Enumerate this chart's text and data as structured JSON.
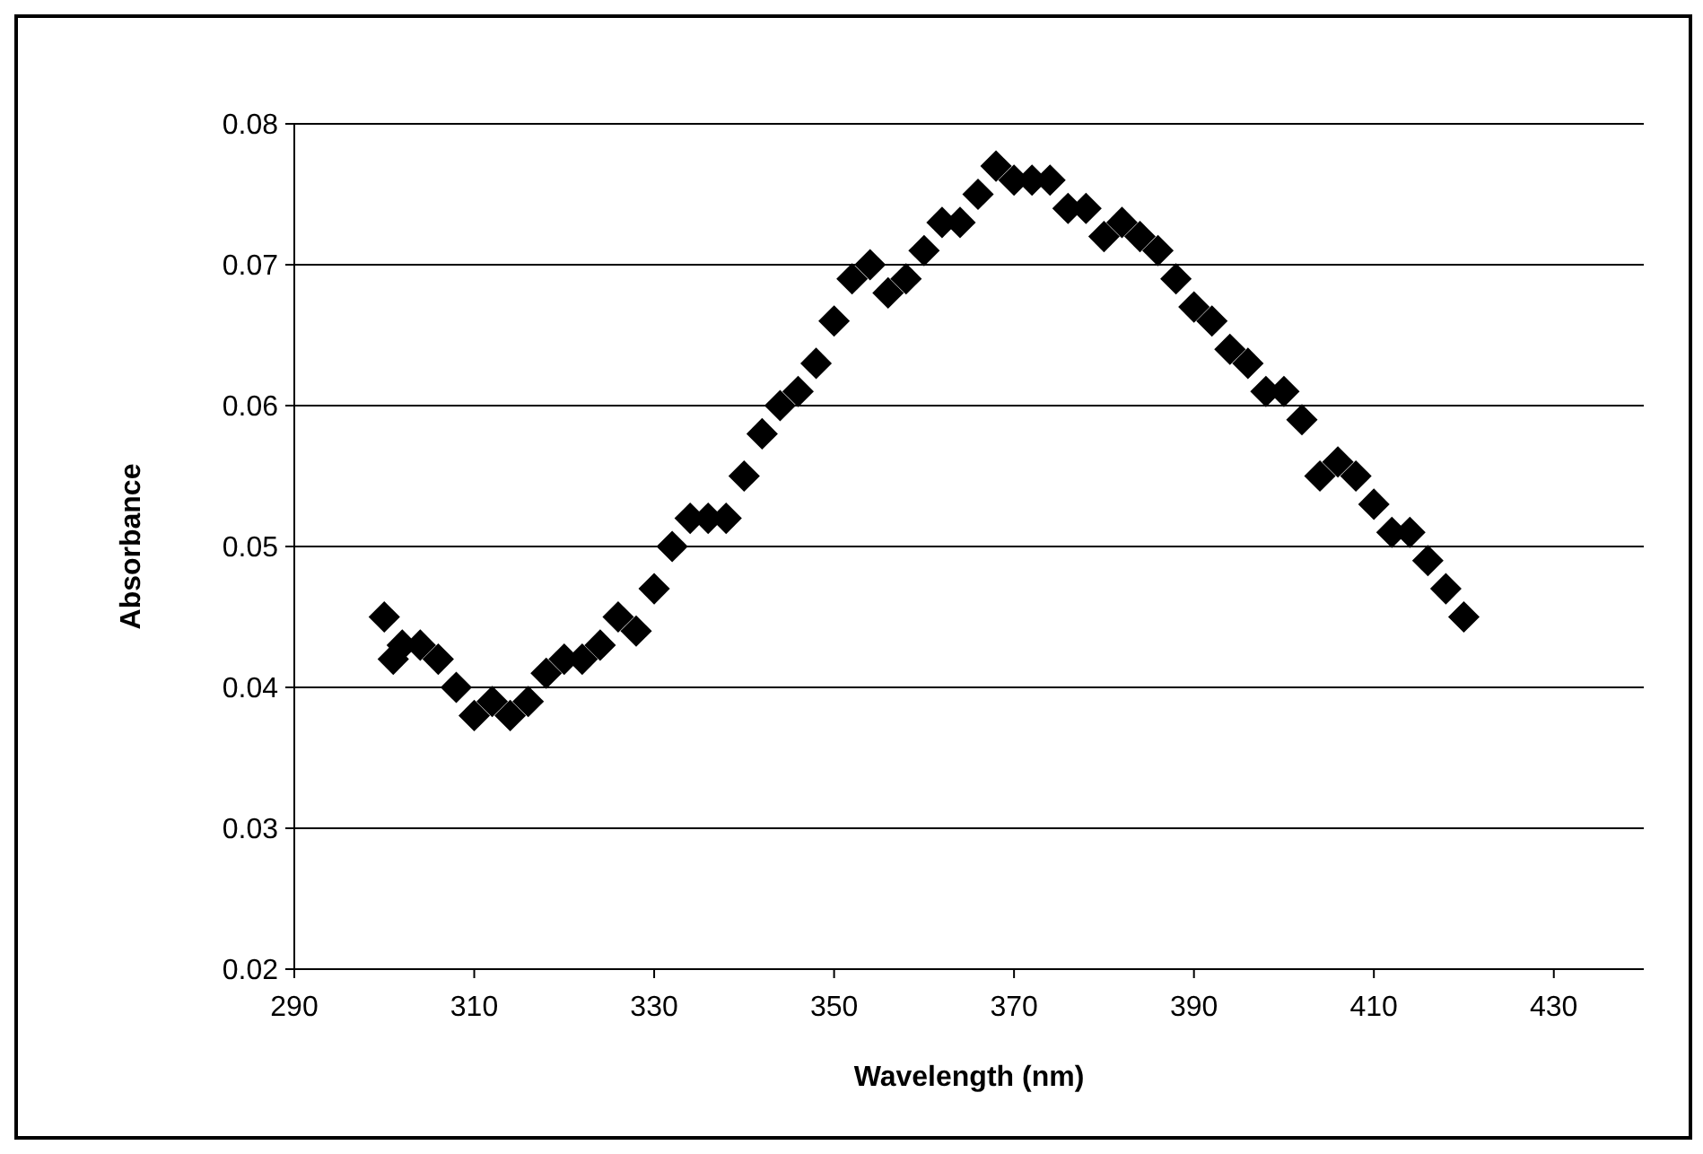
{
  "chart_data": {
    "type": "scatter",
    "xlabel": "Wavelength (nm)",
    "ylabel": "Absorbance",
    "x": [
      300,
      301,
      302,
      304,
      306,
      308,
      310,
      312,
      314,
      316,
      318,
      320,
      322,
      324,
      326,
      328,
      330,
      332,
      334,
      336,
      338,
      340,
      342,
      344,
      346,
      348,
      350,
      352,
      354,
      356,
      358,
      360,
      362,
      364,
      366,
      368,
      370,
      372,
      374,
      376,
      378,
      380,
      382,
      384,
      386,
      388,
      390,
      392,
      394,
      396,
      398,
      400,
      402,
      404,
      406,
      408,
      410,
      412,
      414,
      416,
      418,
      420
    ],
    "series": [
      {
        "color": "#000000",
        "values": [
          0.045,
          0.042,
          0.043,
          0.043,
          0.042,
          0.04,
          0.038,
          0.039,
          0.038,
          0.039,
          0.041,
          0.042,
          0.042,
          0.043,
          0.045,
          0.044,
          0.047,
          0.05,
          0.052,
          0.052,
          0.052,
          0.055,
          0.058,
          0.06,
          0.061,
          0.063,
          0.066,
          0.069,
          0.07,
          0.068,
          0.069,
          0.071,
          0.073,
          0.073,
          0.075,
          0.077,
          0.076,
          0.076,
          0.076,
          0.074,
          0.074,
          0.072,
          0.073,
          0.072,
          0.071,
          0.069,
          0.067,
          0.066,
          0.064,
          0.063,
          0.061,
          0.061,
          0.059,
          0.055,
          0.056,
          0.055,
          0.053,
          0.051,
          0.051,
          0.049,
          0.047,
          0.045
        ]
      }
    ],
    "xlim": [
      290,
      440
    ],
    "xticks": [
      290,
      310,
      330,
      350,
      370,
      390,
      410,
      430
    ],
    "ylim": [
      0.02,
      0.08
    ],
    "yticks": [
      0.02,
      0.03,
      0.04,
      0.05,
      0.06,
      0.07,
      0.08
    ],
    "grid": "y",
    "marker": "diamond"
  }
}
